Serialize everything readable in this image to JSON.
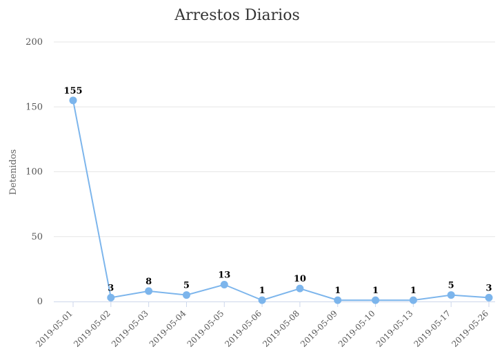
{
  "chart_data": {
    "type": "line",
    "title": "Arrestos Diarios",
    "xlabel": "",
    "ylabel": "Detenidos",
    "ylim": [
      0,
      200
    ],
    "yticks": [
      0,
      50,
      100,
      150,
      200
    ],
    "grid": true,
    "legend": "none",
    "categories": [
      "2019-05-01",
      "2019-05-02",
      "2019-05-03",
      "2019-05-04",
      "2019-05-05",
      "2019-05-06",
      "2019-05-08",
      "2019-05-09",
      "2019-05-10",
      "2019-05-13",
      "2019-05-17",
      "2019-05-26"
    ],
    "series": [
      {
        "values": [
          155,
          3,
          8,
          5,
          13,
          1,
          10,
          1,
          1,
          1,
          5,
          3
        ],
        "color": "#7cb5ec"
      }
    ]
  }
}
